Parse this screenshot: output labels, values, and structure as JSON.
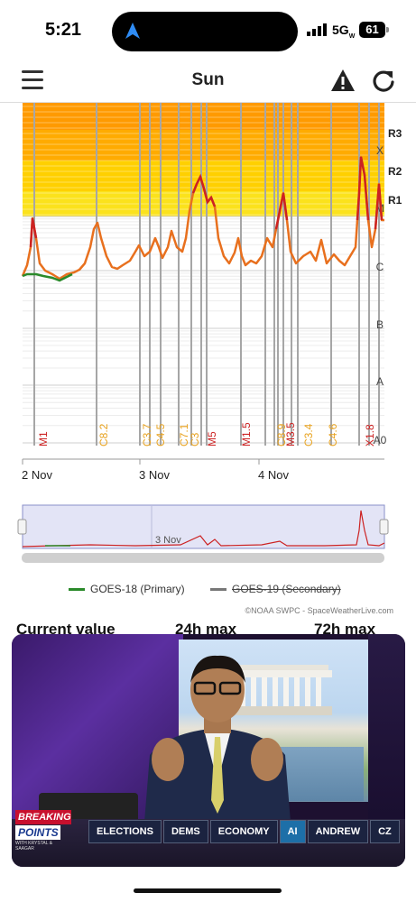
{
  "status_bar": {
    "time": "5:21",
    "network": "5G",
    "network_suffix": "W",
    "battery": "61"
  },
  "header": {
    "title": "Sun"
  },
  "chart_data": {
    "type": "line",
    "title": "",
    "x_tick_labels": [
      "2 Nov",
      "3 Nov",
      "4 Nov"
    ],
    "y_tick_labels": [
      "A0",
      "A",
      "B",
      "C",
      "M",
      "X"
    ],
    "radio_blackout_labels": [
      "R1",
      "R2",
      "R3"
    ],
    "flare_labels": [
      {
        "label": "M1",
        "class": "M"
      },
      {
        "label": "C8.2",
        "class": "C"
      },
      {
        "label": "C3.7",
        "class": "C"
      },
      {
        "label": "C4.5",
        "class": "C"
      },
      {
        "label": "C7.1",
        "class": "C"
      },
      {
        "label": "C3",
        "class": "C"
      },
      {
        "label": "M5",
        "class": "M"
      },
      {
        "label": "M1.5",
        "class": "M"
      },
      {
        "label": "C8.9",
        "class": "C"
      },
      {
        "label": "M3.5",
        "class": "M"
      },
      {
        "label": "C3.4",
        "class": "C"
      },
      {
        "label": "C4.6",
        "class": "C"
      },
      {
        "label": "X1.8",
        "class": "X"
      }
    ],
    "series": [
      {
        "name": "GOES-18 (Primary)",
        "color": "#2a8a2a"
      },
      {
        "name": "GOES-19 (Secondary)",
        "color": "#888888",
        "hidden": true
      }
    ],
    "flux_color": "#e8701e",
    "flare_color_m": "#cc2222",
    "flare_color_c": "#e8a21e",
    "navigator_label": "3 Nov"
  },
  "legend": {
    "primary": "GOES-18 (Primary)",
    "secondary": "GOES-19 (Secondary)"
  },
  "credit": "©NOAA SWPC - SpaceWeatherLive.com",
  "stats": {
    "current": "Current value",
    "max24": "24h max",
    "max72": "72h max"
  },
  "video": {
    "logo_line1": "BREAKING",
    "logo_line2": "POINTS",
    "logo_line3": "WITH KRYSTAL & SAAGAR",
    "tags": [
      "ELECTIONS",
      "DEMS",
      "ECONOMY",
      "AI",
      "ANDREW",
      "CZ"
    ],
    "active_tag": "AI"
  }
}
